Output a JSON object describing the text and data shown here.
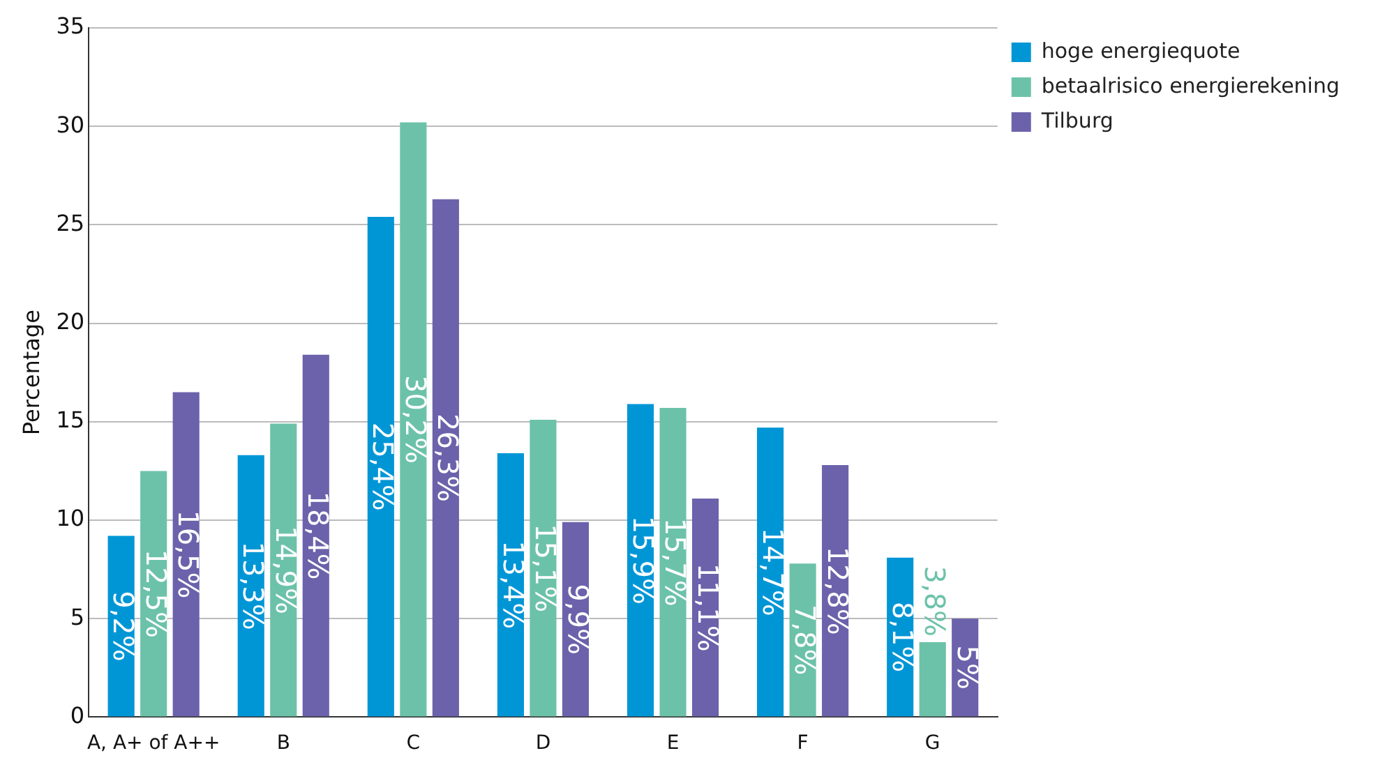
{
  "chart_data": {
    "type": "bar",
    "ylabel": "Percentage",
    "categories": [
      "A, A+ of A++",
      "B",
      "C",
      "D",
      "E",
      "F",
      "G"
    ],
    "series": [
      {
        "name": "hoge energiequote",
        "color": "#0096d6",
        "values": [
          9.2,
          13.3,
          25.4,
          13.4,
          15.9,
          14.7,
          8.1
        ],
        "value_labels": [
          "9,2%",
          "13,3%",
          "25,4%",
          "13,4%",
          "15,9%",
          "14,7%",
          "8,1%"
        ]
      },
      {
        "name": "betaalrisico energierekening",
        "color": "#6cc2a9",
        "values": [
          12.5,
          14.9,
          30.2,
          15.1,
          15.7,
          7.8,
          3.8
        ],
        "value_labels": [
          "12,5%",
          "14,9%",
          "30,2%",
          "15,1%",
          "15,7%",
          "7,8%",
          "3,8%"
        ]
      },
      {
        "name": "Tilburg",
        "color": "#6b62ab",
        "values": [
          16.5,
          18.4,
          26.3,
          9.9,
          11.1,
          12.8,
          5
        ],
        "value_labels": [
          "16,5%",
          "18,4%",
          "26,3%",
          "9,9%",
          "11,1%",
          "12,8%",
          "5%"
        ]
      }
    ],
    "ylim": [
      0,
      35
    ],
    "yticks": [
      0,
      5,
      10,
      15,
      20,
      25,
      30,
      35
    ],
    "grid": "y",
    "legend": "top right"
  }
}
